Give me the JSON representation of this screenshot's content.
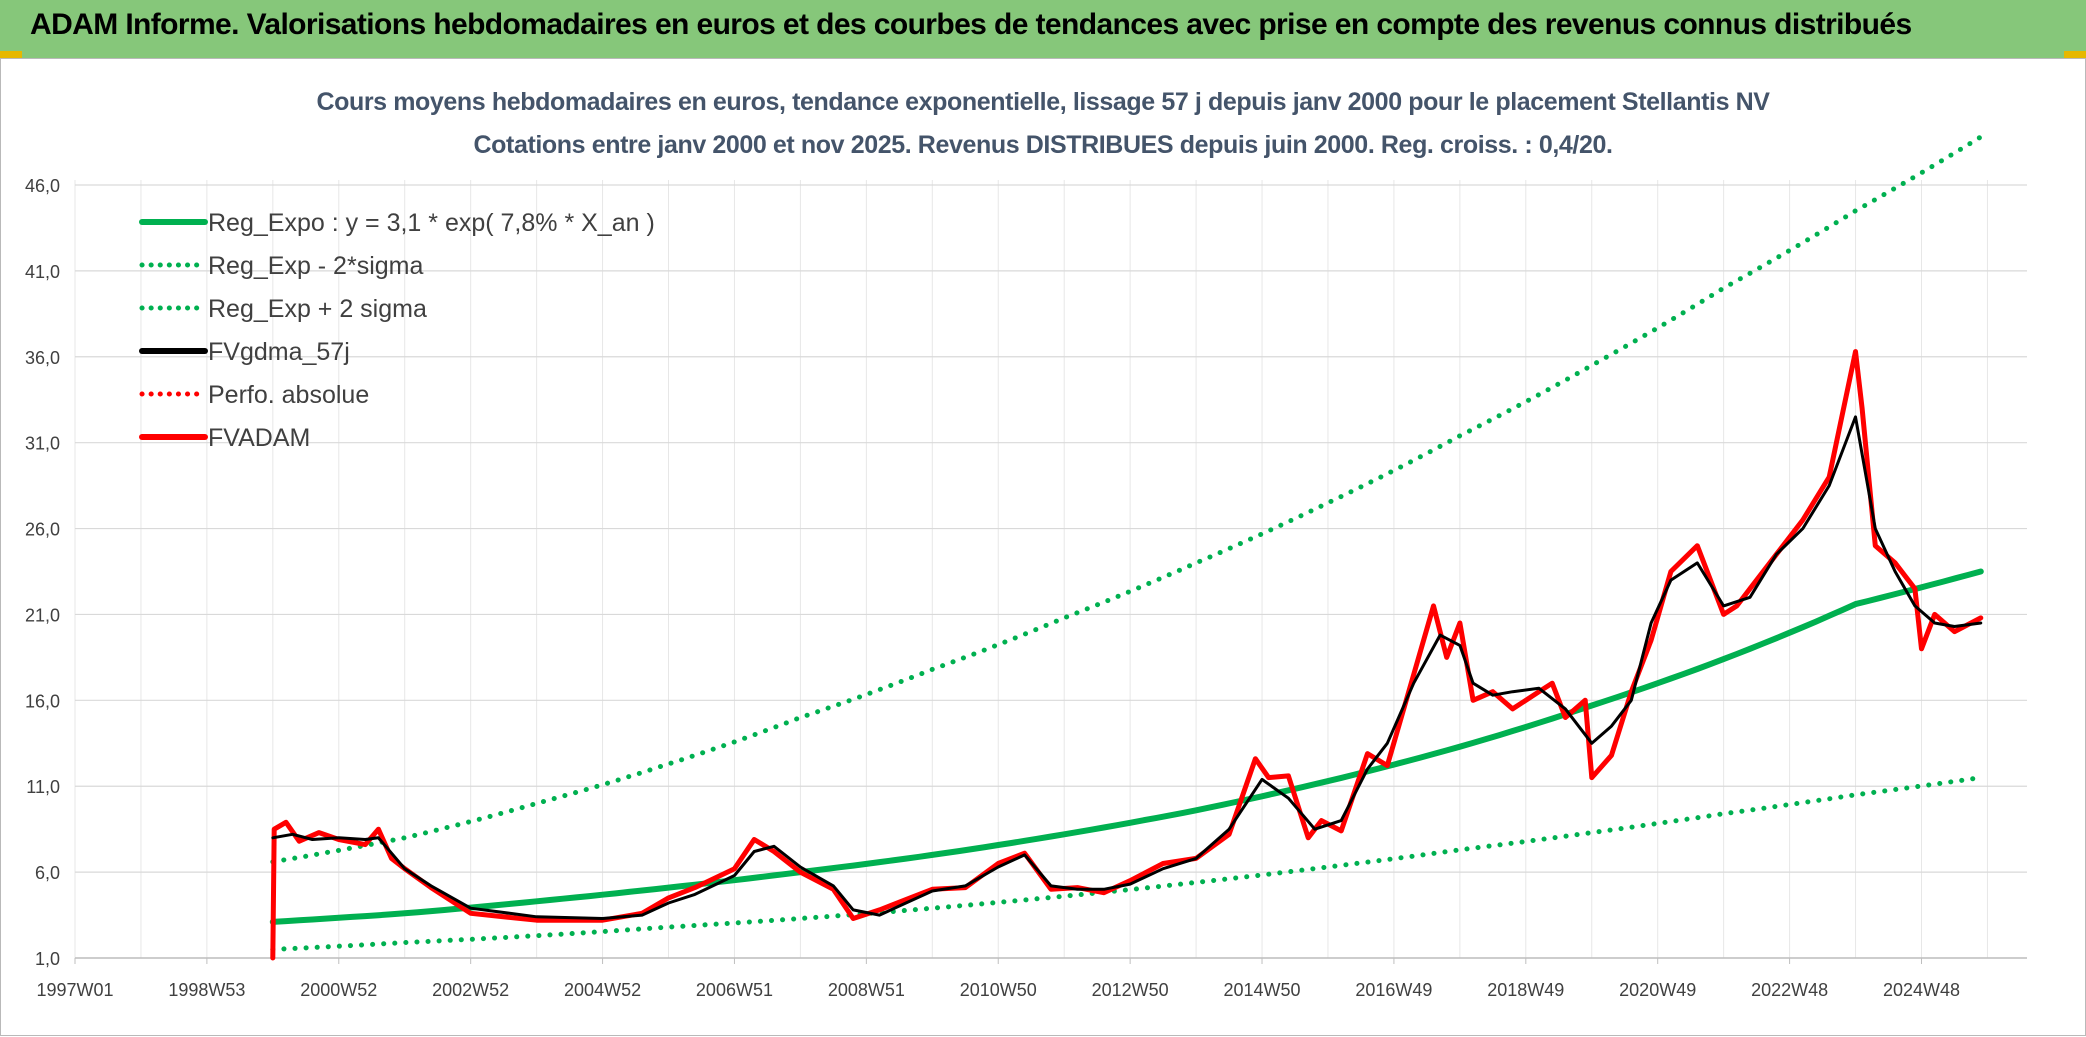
{
  "header": {
    "title": "ADAM Informe. Valorisations hebdomadaires en euros et des courbes de tendances avec prise en compte des revenus connus distribués"
  },
  "colors": {
    "banner": "#86c77a",
    "reg_expo": "#00b050",
    "fvgdma": "#000000",
    "fvadam": "#ff0000",
    "grid": "#d9d9d9",
    "title": "#44546a"
  },
  "chart_data": {
    "type": "line",
    "title_line1": "Cours moyens hebdomadaires en euros, tendance exponentielle, lissage 57 j depuis janv 2000 pour le placement Stellantis NV",
    "title_line2": "Cotations entre janv 2000 et nov 2025. Revenus DISTRIBUES depuis juin 2000. Reg. croiss. : 0,4/20.",
    "x_range": [
      1997.0,
      2026.0
    ],
    "ylim": [
      1.0,
      46.0
    ],
    "y_ticks": [
      "1,0",
      "6,0",
      "11,0",
      "16,0",
      "21,0",
      "26,0",
      "31,0",
      "36,0",
      "41,0",
      "46,0"
    ],
    "x_ticks": [
      {
        "label": "1997W01",
        "t": 1997.0
      },
      {
        "label": "1998W53",
        "t": 1999.0
      },
      {
        "label": "2000W52",
        "t": 2001.0
      },
      {
        "label": "2002W52",
        "t": 2003.0
      },
      {
        "label": "2004W52",
        "t": 2005.0
      },
      {
        "label": "2006W51",
        "t": 2007.0
      },
      {
        "label": "2008W51",
        "t": 2009.0
      },
      {
        "label": "2010W50",
        "t": 2011.0
      },
      {
        "label": "2012W50",
        "t": 2013.0
      },
      {
        "label": "2014W50",
        "t": 2015.0
      },
      {
        "label": "2016W49",
        "t": 2017.0
      },
      {
        "label": "2018W49",
        "t": 2019.0
      },
      {
        "label": "2020W49",
        "t": 2021.0
      },
      {
        "label": "2022W48",
        "t": 2023.0
      },
      {
        "label": "2024W48",
        "t": 2025.0
      }
    ],
    "legend": [
      {
        "key": "reg_expo",
        "label": "Reg_Expo : y = 3,1 * exp( 7,8% *  X_an )",
        "style": "solid",
        "color": "#00b050"
      },
      {
        "key": "reg_minus",
        "label": "Reg_Exp - 2*sigma",
        "style": "dotted",
        "color": "#00b050"
      },
      {
        "key": "reg_plus",
        "label": "Reg_Exp + 2 sigma",
        "style": "dotted",
        "color": "#00b050"
      },
      {
        "key": "fvgdma",
        "label": "FVgdma_57j",
        "style": "solid",
        "color": "#000000"
      },
      {
        "key": "perfo",
        "label": "Perfo. absolue",
        "style": "dotted",
        "color": "#ff0000"
      },
      {
        "key": "fvadam",
        "label": "FVADAM",
        "style": "solid",
        "color": "#ff0000"
      }
    ],
    "series": [
      {
        "name": "Reg_Expo : y = 3,1 * exp( 7,8% *  X_an )",
        "x": [
          2000.0,
          2002.0,
          2004.0,
          2006.0,
          2008.0,
          2010.0,
          2012.0,
          2014.0,
          2016.0,
          2018.0,
          2020.0,
          2022.0,
          2024.0,
          2025.9
        ],
        "y": [
          3.1,
          3.6,
          4.3,
          5.1,
          6.0,
          7.0,
          8.2,
          9.6,
          11.3,
          13.3,
          15.7,
          18.4,
          21.6,
          23.5
        ]
      },
      {
        "name": "Reg_Exp - 2*sigma",
        "x": [
          2000.0,
          2002.0,
          2004.0,
          2006.0,
          2008.0,
          2010.0,
          2012.0,
          2014.0,
          2016.0,
          2018.0,
          2020.0,
          2022.0,
          2024.0,
          2025.9
        ],
        "y": [
          1.5,
          1.9,
          2.3,
          2.8,
          3.3,
          3.9,
          4.6,
          5.4,
          6.3,
          7.3,
          8.3,
          9.4,
          10.5,
          11.5
        ]
      },
      {
        "name": "Reg_Exp + 2 sigma",
        "x": [
          2000.0,
          2002.0,
          2004.0,
          2006.0,
          2008.0,
          2010.0,
          2012.0,
          2014.0,
          2016.0,
          2018.0,
          2020.0,
          2022.0,
          2024.0,
          2025.9
        ],
        "y": [
          6.6,
          8.0,
          10.0,
          12.3,
          15.0,
          17.8,
          20.8,
          24.0,
          27.5,
          31.4,
          35.5,
          40.0,
          44.5,
          48.8
        ]
      },
      {
        "name": "FVgdma_57j",
        "x": [
          2000.0,
          2000.3,
          2000.6,
          2001.0,
          2001.4,
          2001.6,
          2002.0,
          2002.4,
          2003.0,
          2004.0,
          2005.0,
          2005.6,
          2006.0,
          2006.4,
          2007.0,
          2007.3,
          2007.6,
          2008.0,
          2008.5,
          2008.8,
          2009.2,
          2009.6,
          2010.0,
          2010.5,
          2011.0,
          2011.4,
          2011.8,
          2012.2,
          2012.6,
          2013.0,
          2013.5,
          2014.0,
          2014.5,
          2015.0,
          2015.4,
          2015.8,
          2016.2,
          2016.6,
          2016.9,
          2017.3,
          2017.7,
          2018.0,
          2018.2,
          2018.5,
          2018.8,
          2019.2,
          2019.6,
          2020.0,
          2020.3,
          2020.6,
          2020.9,
          2021.2,
          2021.6,
          2022.0,
          2022.4,
          2022.8,
          2023.2,
          2023.6,
          2024.0,
          2024.3,
          2024.6,
          2024.9,
          2025.2,
          2025.5,
          2025.9
        ],
        "y": [
          8.0,
          8.2,
          7.9,
          8.0,
          7.9,
          8.0,
          6.2,
          5.2,
          3.9,
          3.4,
          3.3,
          3.5,
          4.2,
          4.7,
          5.8,
          7.2,
          7.5,
          6.3,
          5.2,
          3.8,
          3.5,
          4.2,
          4.9,
          5.2,
          6.3,
          7.0,
          5.2,
          5.0,
          5.0,
          5.3,
          6.2,
          6.8,
          8.5,
          11.4,
          10.3,
          8.5,
          9.0,
          12.0,
          13.5,
          17.0,
          19.8,
          19.2,
          17.0,
          16.3,
          16.5,
          16.7,
          15.5,
          13.5,
          14.5,
          16.0,
          20.5,
          23.0,
          24.0,
          21.5,
          22.0,
          24.5,
          26.0,
          28.5,
          32.5,
          26.0,
          23.5,
          21.5,
          20.5,
          20.3,
          20.5
        ]
      },
      {
        "name": "FVADAM",
        "x": [
          2000.0,
          2000.02,
          2000.2,
          2000.4,
          2000.7,
          2001.0,
          2001.4,
          2001.6,
          2001.8,
          2002.0,
          2002.4,
          2003.0,
          2004.0,
          2005.0,
          2005.6,
          2006.0,
          2006.4,
          2007.0,
          2007.3,
          2007.6,
          2008.0,
          2008.5,
          2008.8,
          2009.2,
          2009.6,
          2010.0,
          2010.5,
          2011.0,
          2011.4,
          2011.8,
          2012.2,
          2012.6,
          2013.0,
          2013.5,
          2014.0,
          2014.5,
          2014.9,
          2015.1,
          2015.4,
          2015.7,
          2015.9,
          2016.2,
          2016.6,
          2016.9,
          2017.3,
          2017.6,
          2017.8,
          2018.0,
          2018.2,
          2018.5,
          2018.8,
          2019.2,
          2019.4,
          2019.6,
          2019.9,
          2020.0,
          2020.3,
          2020.6,
          2020.9,
          2021.2,
          2021.6,
          2022.0,
          2022.2,
          2022.4,
          2022.8,
          2023.2,
          2023.6,
          2024.0,
          2024.1,
          2024.3,
          2024.6,
          2024.9,
          2025.0,
          2025.2,
          2025.5,
          2025.9
        ],
        "y": [
          1.0,
          8.5,
          8.9,
          7.8,
          8.3,
          7.9,
          7.6,
          8.5,
          6.8,
          6.2,
          5.1,
          3.6,
          3.2,
          3.2,
          3.6,
          4.5,
          5.1,
          6.2,
          7.9,
          7.2,
          6.0,
          5.0,
          3.3,
          3.8,
          4.4,
          5.0,
          5.1,
          6.5,
          7.1,
          5.0,
          5.1,
          4.8,
          5.5,
          6.5,
          6.8,
          8.2,
          12.6,
          11.5,
          11.6,
          8.0,
          9.0,
          8.4,
          12.9,
          12.2,
          17.5,
          21.5,
          18.5,
          20.5,
          16.0,
          16.5,
          15.5,
          16.5,
          17.0,
          15.0,
          16.0,
          11.5,
          12.8,
          16.5,
          19.5,
          23.5,
          25.0,
          21.0,
          21.5,
          22.5,
          24.5,
          26.5,
          29.0,
          36.3,
          33.0,
          25.0,
          24.0,
          22.5,
          19.0,
          21.0,
          20.0,
          20.8
        ]
      }
    ]
  }
}
